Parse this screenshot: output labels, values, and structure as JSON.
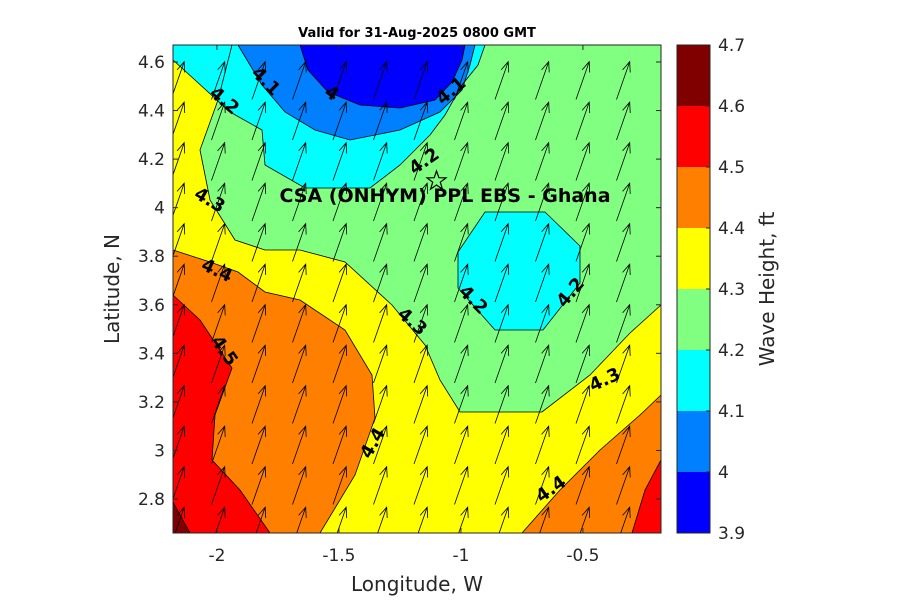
{
  "chart_data": {
    "type": "contour",
    "title": "Valid for 31-Aug-2025 0800 GMT",
    "xlabel": "Longitude, W",
    "ylabel": "Latitude, N",
    "colorbar_label": "Wave Height, ft",
    "annotation": "CSA (ONHYM) PPL EBS  - Ghana",
    "site_marker": {
      "lon": -1.1,
      "lat": 4.11,
      "symbol": "star"
    },
    "xlim": [
      -2.18,
      -0.18
    ],
    "ylim": [
      2.66,
      4.67
    ],
    "x_ticks": [
      -2,
      -1.5,
      -1,
      -0.5
    ],
    "x_tick_labels": [
      "-2",
      "-1.5",
      "-1",
      "-0.5"
    ],
    "y_ticks": [
      2.8,
      3.0,
      3.2,
      3.4,
      3.6,
      3.8,
      4.0,
      4.2,
      4.4,
      4.6
    ],
    "y_tick_labels": [
      "2.8",
      "3",
      "3.2",
      "3.4",
      "3.6",
      "3.8",
      "4",
      "4.2",
      "4.4",
      "4.6"
    ],
    "levels": [
      3.9,
      4.0,
      4.1,
      4.2,
      4.3,
      4.4,
      4.5,
      4.6,
      4.7
    ],
    "level_labels": [
      "3.9",
      "4",
      "4.1",
      "4.2",
      "4.3",
      "4.4",
      "4.5",
      "4.6",
      "4.7"
    ],
    "level_colors": [
      "#0000ff",
      "#0080ff",
      "#00ffff",
      "#80ff80",
      "#ffff00",
      "#ff8000",
      "#ff0000",
      "#800000"
    ],
    "contour_labels": [
      {
        "text": "4.1",
        "lon": -1.8,
        "lat": 4.52,
        "angle": 45
      },
      {
        "text": "4",
        "lon": -1.53,
        "lat": 4.47,
        "angle": 35
      },
      {
        "text": "4.1",
        "lon": -1.04,
        "lat": 4.48,
        "angle": -40
      },
      {
        "text": "4.2",
        "lon": -1.97,
        "lat": 4.44,
        "angle": 40
      },
      {
        "text": "4.2",
        "lon": -1.15,
        "lat": 4.19,
        "angle": -35
      },
      {
        "text": "4.3",
        "lon": -2.03,
        "lat": 4.03,
        "angle": 30
      },
      {
        "text": "4.2",
        "lon": -0.95,
        "lat": 3.62,
        "angle": 45
      },
      {
        "text": "4.2",
        "lon": -0.55,
        "lat": 3.65,
        "angle": -50
      },
      {
        "text": "4.4",
        "lon": -2.0,
        "lat": 3.74,
        "angle": 25
      },
      {
        "text": "4.3",
        "lon": -1.2,
        "lat": 3.53,
        "angle": 40
      },
      {
        "text": "4.5",
        "lon": -1.97,
        "lat": 3.41,
        "angle": 55
      },
      {
        "text": "4.3",
        "lon": -0.41,
        "lat": 3.29,
        "angle": -25
      },
      {
        "text": "4.4",
        "lon": -1.36,
        "lat": 3.03,
        "angle": -60
      },
      {
        "text": "4.4",
        "lon": -0.63,
        "lat": 2.84,
        "angle": -35
      }
    ],
    "wave_direction": {
      "dx": 0.35,
      "dy": 1,
      "note": "uniform arrows pointing toward NNE"
    }
  }
}
